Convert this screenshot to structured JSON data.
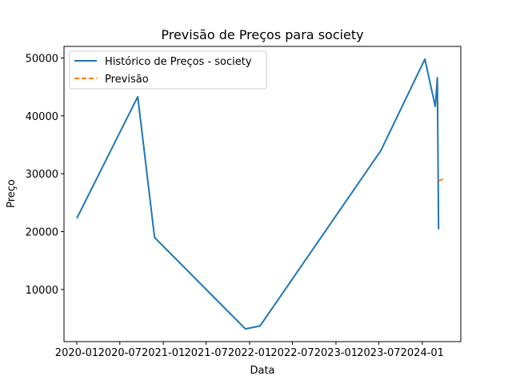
{
  "chart_data": {
    "type": "line",
    "title": "Previsão de Preços para society",
    "xlabel": "Data",
    "ylabel": "Preço",
    "x_axis_type": "date",
    "xlim": [
      "2019-11-08",
      "2024-06-12"
    ],
    "ylim": [
      1000,
      52000
    ],
    "x_ticks": [
      "2020-01-01",
      "2020-07-01",
      "2021-01-01",
      "2021-07-01",
      "2022-01-01",
      "2022-07-01",
      "2023-01-01",
      "2023-07-01",
      "2024-01-01"
    ],
    "x_tick_labels": [
      "2020-01",
      "2020-07",
      "2021-01",
      "2021-07",
      "2022-01",
      "2022-07",
      "2023-01",
      "2023-07",
      "2024-01"
    ],
    "y_ticks": [
      10000,
      20000,
      30000,
      40000,
      50000
    ],
    "y_tick_labels": [
      "10000",
      "20000",
      "30000",
      "40000",
      "50000"
    ],
    "grid": false,
    "legend_position": "top-left",
    "series": [
      {
        "name": "Histórico de Preços - society",
        "color": "#1f77b4",
        "style": "solid",
        "points": [
          {
            "x": "2020-01-01",
            "y": 22300
          },
          {
            "x": "2020-09-15",
            "y": 43300
          },
          {
            "x": "2020-11-25",
            "y": 19000
          },
          {
            "x": "2021-12-14",
            "y": 3200
          },
          {
            "x": "2022-02-14",
            "y": 3700
          },
          {
            "x": "2023-07-10",
            "y": 34000
          },
          {
            "x": "2024-01-12",
            "y": 49800
          },
          {
            "x": "2024-02-25",
            "y": 41600
          },
          {
            "x": "2024-03-05",
            "y": 46600
          },
          {
            "x": "2024-03-10",
            "y": 20400
          }
        ]
      },
      {
        "name": "Previsão",
        "color": "#ff7f0e",
        "style": "dashed",
        "points": [
          {
            "x": "2024-03-10",
            "y": 28800
          },
          {
            "x": "2024-04-01",
            "y": 29100
          }
        ]
      }
    ]
  }
}
